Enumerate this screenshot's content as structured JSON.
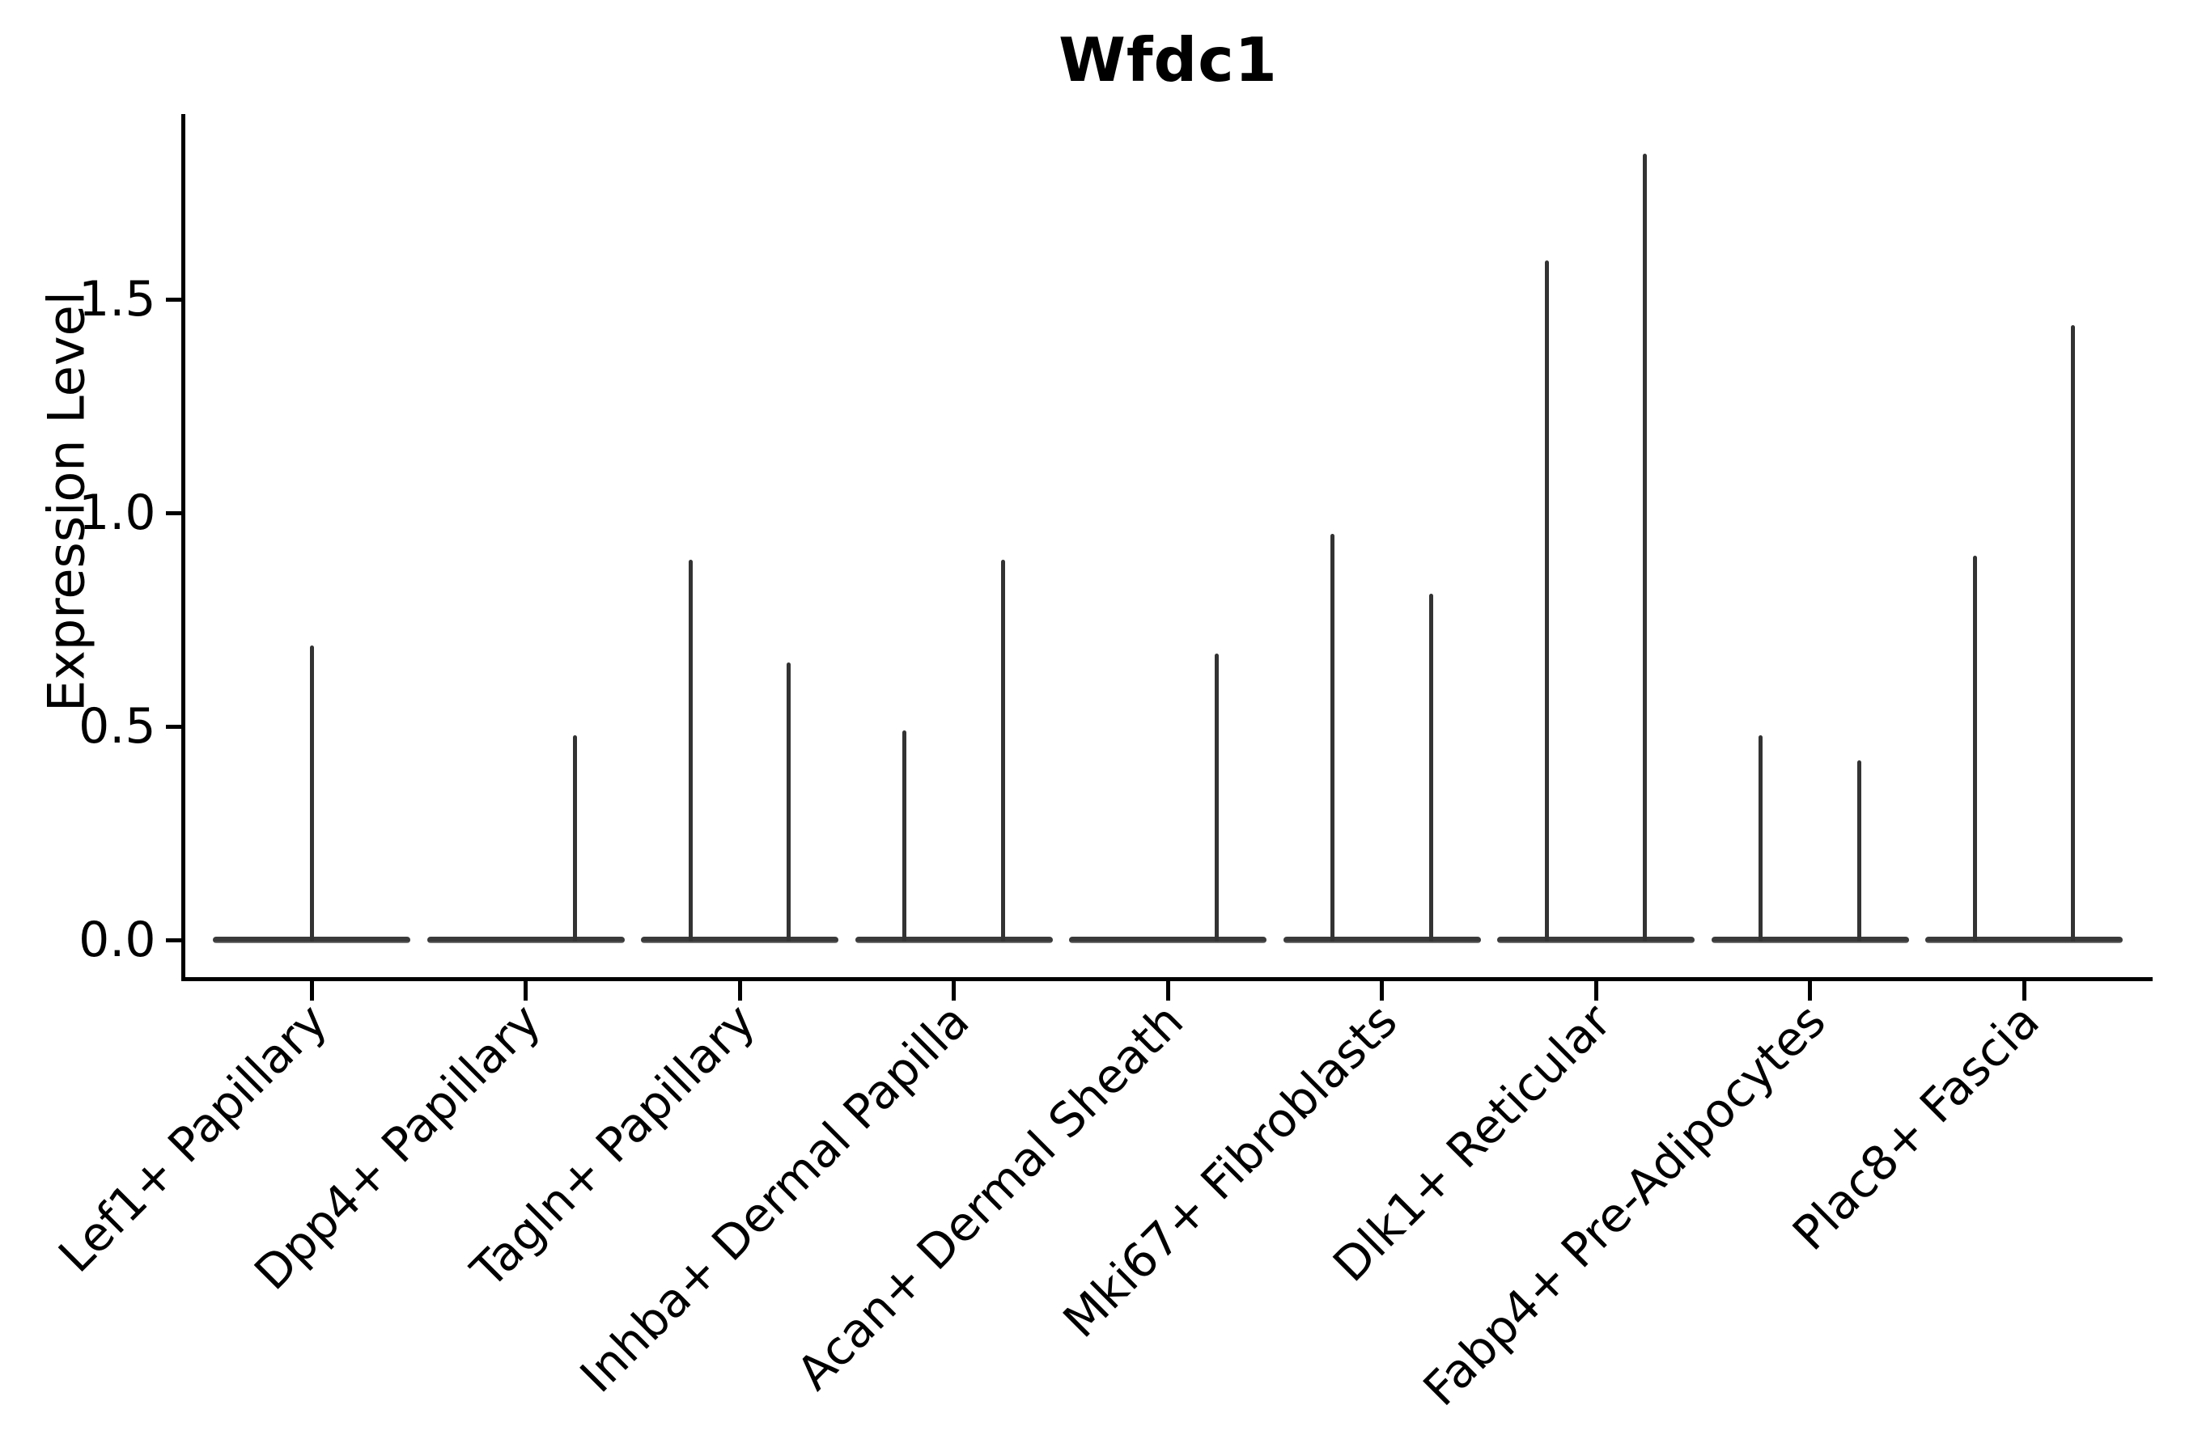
{
  "figure": {
    "title": "Wfdc1",
    "ylabel": "Expression Level"
  },
  "chart_data": {
    "type": "violin",
    "title": "Wfdc1",
    "subtitle": "",
    "xlabel": "",
    "ylabel": "Expression Level",
    "ytick_labels": [
      "0.0",
      "0.5",
      "1.0",
      "1.5"
    ],
    "ytick_values": [
      0,
      0.5,
      1.0,
      1.5
    ],
    "ylim": [
      0,
      1.93
    ],
    "grid": false,
    "legend_position": "none",
    "categories": [
      "Lef1+ Papillary",
      "Dpp4+ Papillary",
      "Tagln+ Papillary",
      "Inhba+ Dermal Papilla",
      "Acan+ Dermal Sheath",
      "Mki67+ Fibroblasts",
      "Dlk1+ Reticular",
      "Fabp4+ Pre-Adipocytes",
      "Plac8+ Fascia"
    ],
    "violins": [
      {
        "category": "Lef1+ Papillary",
        "baseline_value": 0,
        "spikes": [
          {
            "pos": 0.0,
            "max": 0.69
          }
        ]
      },
      {
        "category": "Dpp4+ Papillary",
        "baseline_value": 0,
        "spikes": [
          {
            "pos": 0.23,
            "max": 0.48
          }
        ]
      },
      {
        "category": "Tagln+ Papillary",
        "baseline_value": 0,
        "spikes": [
          {
            "pos": -0.23,
            "max": 0.89
          },
          {
            "pos": 0.23,
            "max": 0.65
          }
        ]
      },
      {
        "category": "Inhba+ Dermal Papilla",
        "baseline_value": 0,
        "spikes": [
          {
            "pos": -0.23,
            "max": 0.49
          },
          {
            "pos": 0.23,
            "max": 0.89
          }
        ]
      },
      {
        "category": "Acan+ Dermal Sheath",
        "baseline_value": 0,
        "spikes": [
          {
            "pos": 0.23,
            "max": 0.67
          }
        ]
      },
      {
        "category": "Mki67+ Fibroblasts",
        "baseline_value": 0,
        "spikes": [
          {
            "pos": -0.23,
            "max": 0.95
          },
          {
            "pos": 0.23,
            "max": 0.81
          }
        ]
      },
      {
        "category": "Dlk1+ Reticular",
        "baseline_value": 0,
        "spikes": [
          {
            "pos": -0.23,
            "max": 1.59
          },
          {
            "pos": 0.23,
            "max": 1.84
          }
        ]
      },
      {
        "category": "Fabp4+ Pre-Adipocytes",
        "baseline_value": 0,
        "spikes": [
          {
            "pos": -0.23,
            "max": 0.48
          },
          {
            "pos": 0.23,
            "max": 0.42
          }
        ]
      },
      {
        "category": "Plac8+ Fascia",
        "baseline_value": 0,
        "spikes": [
          {
            "pos": -0.23,
            "max": 0.9
          },
          {
            "pos": 0.23,
            "max": 1.44
          }
        ]
      }
    ],
    "colors": {
      "line": "#333333",
      "baseline": "#3a3a3a",
      "baseline_edge": "#8e8e8e",
      "axis": "#000000",
      "text": "#000000",
      "background": "#ffffff"
    }
  }
}
